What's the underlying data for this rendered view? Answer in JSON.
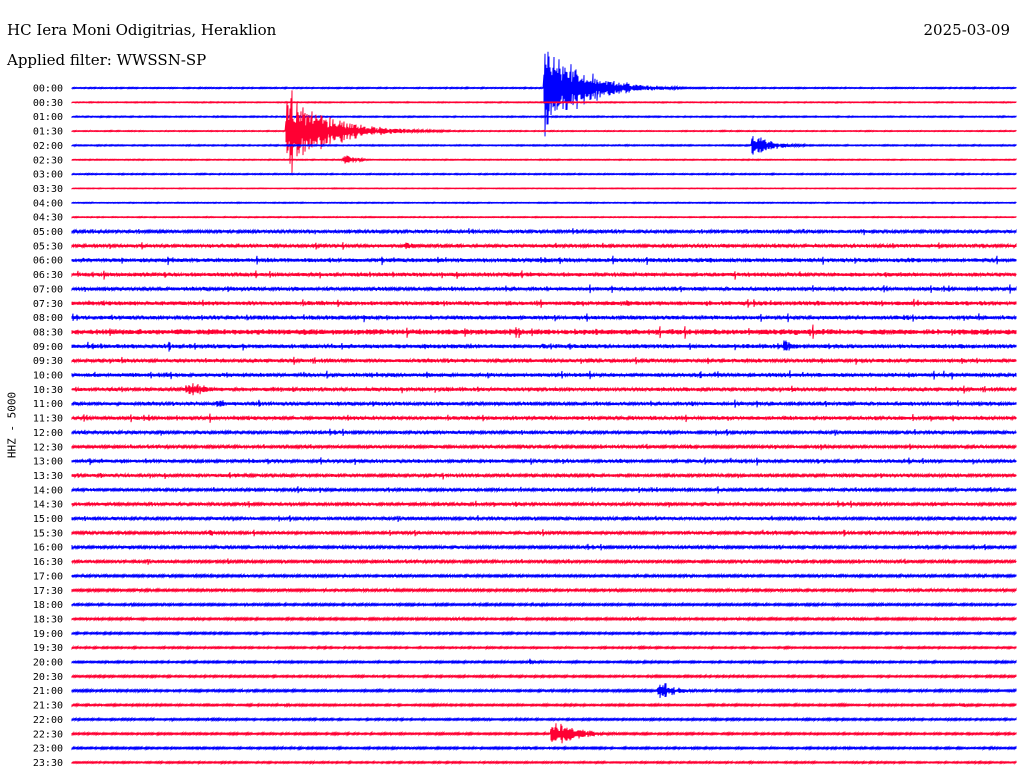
{
  "header": {
    "station": "HC Iera Moni Odigitrias, Heraklion",
    "date": "2025-03-09",
    "filter_label": "Applied filter: WWSSN-SP",
    "channel_label": "HHZ - 5000"
  },
  "colors": {
    "blue": "#0000ff",
    "red": "#ff0033"
  },
  "chart_data": {
    "type": "line",
    "title": "HC Iera Moni Odigitrias, Heraklion",
    "subtitle": "Applied filter: WWSSN-SP",
    "ylabel": "HHZ - 5000",
    "row_labels": [
      "00:00",
      "00:30",
      "01:00",
      "01:30",
      "02:00",
      "02:30",
      "03:00",
      "03:30",
      "04:00",
      "04:30",
      "05:00",
      "05:30",
      "06:00",
      "06:30",
      "07:00",
      "07:30",
      "08:00",
      "08:30",
      "09:00",
      "09:30",
      "10:00",
      "10:30",
      "11:00",
      "11:30",
      "12:00",
      "12:30",
      "13:00",
      "13:30",
      "14:00",
      "14:30",
      "15:00",
      "15:30",
      "16:00",
      "16:30",
      "17:00",
      "17:30",
      "18:00",
      "18:30",
      "19:00",
      "19:30",
      "20:00",
      "20:30",
      "21:00",
      "21:30",
      "22:00",
      "22:30",
      "23:00",
      "23:30"
    ],
    "row_colors": [
      "blue",
      "red"
    ],
    "minutes_per_row": 30,
    "noise_levels": [
      0.5,
      0.4,
      0.5,
      0.4,
      0.5,
      0.4,
      0.5,
      0.3,
      0.4,
      0.4,
      1.2,
      1.3,
      1.6,
      1.5,
      1.4,
      1.6,
      1.5,
      2.2,
      1.6,
      1.4,
      1.5,
      1.4,
      1.3,
      1.4,
      1.2,
      1.1,
      1.3,
      1.2,
      1.1,
      1.2,
      1.2,
      1.1,
      1.1,
      1.1,
      1.0,
      1.0,
      0.9,
      0.9,
      0.8,
      0.7,
      0.8,
      0.8,
      0.9,
      0.8,
      0.8,
      0.8,
      0.8,
      0.7
    ],
    "events": [
      {
        "row": 0,
        "minute": 15.0,
        "amplitude": 62,
        "duration_min": 2.5
      },
      {
        "row": 3,
        "minute": 6.8,
        "amplitude": 50,
        "duration_min": 2.8
      },
      {
        "row": 4,
        "minute": 21.6,
        "amplitude": 14,
        "duration_min": 1.5
      },
      {
        "row": 5,
        "minute": 8.6,
        "amplitude": 7,
        "duration_min": 0.8
      },
      {
        "row": 11,
        "minute": 10.6,
        "amplitude": 6,
        "duration_min": 0.8
      },
      {
        "row": 21,
        "minute": 3.6,
        "amplitude": 9,
        "duration_min": 1.8
      },
      {
        "row": 22,
        "minute": 4.6,
        "amplitude": 6,
        "duration_min": 0.8
      },
      {
        "row": 15,
        "minute": 17.6,
        "amplitude": 5,
        "duration_min": 1.2
      },
      {
        "row": 18,
        "minute": 22.6,
        "amplitude": 9,
        "duration_min": 0.8
      },
      {
        "row": 42,
        "minute": 18.6,
        "amplitude": 16,
        "duration_min": 1.0
      },
      {
        "row": 45,
        "minute": 15.2,
        "amplitude": 18,
        "duration_min": 1.8
      },
      {
        "row": 40,
        "minute": 14.5,
        "amplitude": 5,
        "duration_min": 0.5
      },
      {
        "row": 43,
        "minute": 28.2,
        "amplitude": 4,
        "duration_min": 0.6
      },
      {
        "row": 31,
        "minute": 4.4,
        "amplitude": 4,
        "duration_min": 0.5
      },
      {
        "row": 32,
        "minute": 4.6,
        "amplitude": 4,
        "duration_min": 0.5
      }
    ]
  }
}
